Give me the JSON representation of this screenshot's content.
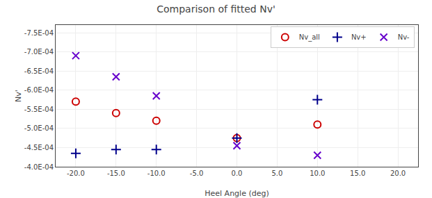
{
  "chart_data": {
    "type": "scatter",
    "title": "Comparison of fitted Nv'",
    "xlabel": "Heel Angle (deg)",
    "ylabel": "Nv'",
    "x": [
      -20,
      -15,
      -10,
      0,
      10
    ],
    "series": [
      {
        "name": "Nv_all",
        "color": "#cc0000",
        "marker": "open_circle",
        "values": [
          -0.00057,
          -0.00054,
          -0.00052,
          -0.000475,
          -0.00051
        ]
      },
      {
        "name": "Nv+",
        "color": "#00008B",
        "marker": "plus",
        "values": [
          -0.000435,
          -0.000445,
          -0.000445,
          -0.000475,
          -0.000575
        ]
      },
      {
        "name": "Nv-",
        "color": "#6600cc",
        "marker": "cross",
        "values": [
          -0.00069,
          -0.000635,
          -0.000585,
          -0.000455,
          -0.00043
        ]
      }
    ],
    "xlim": [
      -22.5,
      22.5
    ],
    "ylim": [
      -0.0004,
      -0.00077
    ],
    "xticks": [
      {
        "value": -20.0,
        "label": "-20.0"
      },
      {
        "value": -15.0,
        "label": "-15.0"
      },
      {
        "value": -10.0,
        "label": "-10.0"
      },
      {
        "value": -5.0,
        "label": "-5.0"
      },
      {
        "value": 0.0,
        "label": "0.0"
      },
      {
        "value": 5.0,
        "label": "5.0"
      },
      {
        "value": 10.0,
        "label": "10.0"
      },
      {
        "value": 15.0,
        "label": "15.0"
      },
      {
        "value": 20.0,
        "label": "20.0"
      }
    ],
    "yticks": [
      {
        "value": -0.00075,
        "label": "-7.5E-04"
      },
      {
        "value": -0.0007,
        "label": "-7.0E-04"
      },
      {
        "value": -0.00065,
        "label": "-6.5E-04"
      },
      {
        "value": -0.0006,
        "label": "-6.0E-04"
      },
      {
        "value": -0.00055,
        "label": "-5.5E-04"
      },
      {
        "value": -0.0005,
        "label": "-5.0E-04"
      },
      {
        "value": -0.00045,
        "label": "-4.5E-04"
      },
      {
        "value": -0.0004,
        "label": "-4.0E-04"
      }
    ],
    "grid": true,
    "legend": "upper right"
  }
}
